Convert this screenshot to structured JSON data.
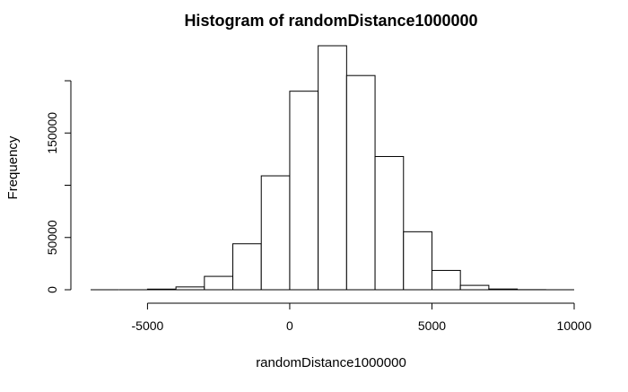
{
  "chart_data": {
    "type": "bar",
    "title": "Histogram of randomDistance1000000",
    "xlabel": "randomDistance1000000",
    "ylabel": "Frequency",
    "bins": [
      {
        "start": -7000,
        "end": -6000,
        "count": 0
      },
      {
        "start": -6000,
        "end": -5000,
        "count": 0
      },
      {
        "start": -5000,
        "end": -4000,
        "count": 600
      },
      {
        "start": -4000,
        "end": -3000,
        "count": 2700
      },
      {
        "start": -3000,
        "end": -2000,
        "count": 12800
      },
      {
        "start": -2000,
        "end": -1000,
        "count": 44000
      },
      {
        "start": -1000,
        "end": 0,
        "count": 109000
      },
      {
        "start": 0,
        "end": 1000,
        "count": 190000
      },
      {
        "start": 1000,
        "end": 2000,
        "count": 233500
      },
      {
        "start": 2000,
        "end": 3000,
        "count": 205000
      },
      {
        "start": 3000,
        "end": 4000,
        "count": 127500
      },
      {
        "start": 4000,
        "end": 5000,
        "count": 55500
      },
      {
        "start": 5000,
        "end": 6000,
        "count": 18500
      },
      {
        "start": 6000,
        "end": 7000,
        "count": 4200
      },
      {
        "start": 7000,
        "end": 8000,
        "count": 700
      },
      {
        "start": 8000,
        "end": 9000,
        "count": 100
      },
      {
        "start": 9000,
        "end": 10000,
        "count": 0
      }
    ],
    "xlim": [
      -7000,
      10000
    ],
    "ylim": [
      0,
      233500
    ],
    "x_ticks": [
      -5000,
      0,
      5000,
      10000
    ],
    "x_tick_labels": [
      "-5000",
      "0",
      "5000",
      "10000"
    ],
    "y_ticks": [
      0,
      50000,
      100000,
      150000,
      200000
    ],
    "y_tick_labels": [
      "0",
      "50000",
      "",
      "150000",
      ""
    ],
    "grid": false,
    "bar_fill": "#ffffff",
    "bar_stroke": "#000000"
  }
}
